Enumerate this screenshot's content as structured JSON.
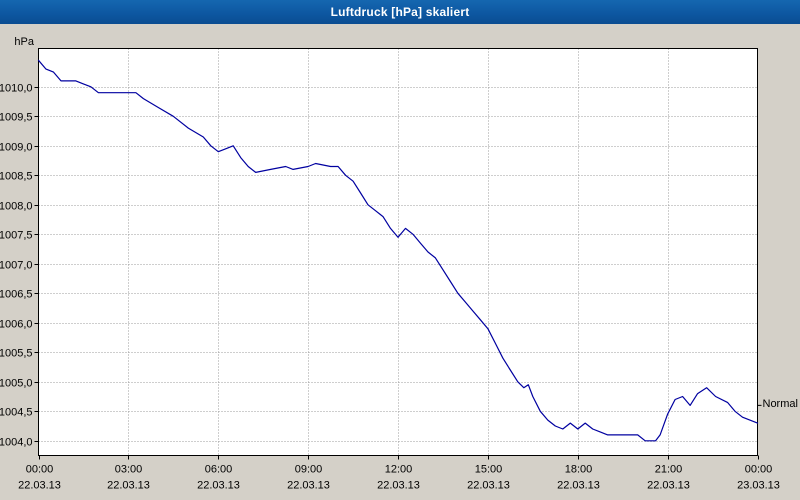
{
  "window": {
    "title": "Luftdruck [hPa] skaliert"
  },
  "chart_data": {
    "type": "line",
    "title": "Luftdruck [hPa] skaliert",
    "xlabel": "",
    "ylabel": "hPa",
    "ylim": [
      1003.75,
      1010.65
    ],
    "x_range_hours": [
      0,
      24
    ],
    "grid": "dotted",
    "legend_position": "none",
    "plot_bg": "#ffffff",
    "grid_color": "#9c9c9c",
    "line_color": "#0000a0",
    "y_ticks": [
      {
        "value": 1010.0,
        "label": "1010,0"
      },
      {
        "value": 1009.5,
        "label": "1009,5"
      },
      {
        "value": 1009.0,
        "label": "1009,0"
      },
      {
        "value": 1008.5,
        "label": "1008,5"
      },
      {
        "value": 1008.0,
        "label": "1008,0"
      },
      {
        "value": 1007.5,
        "label": "1007,5"
      },
      {
        "value": 1007.0,
        "label": "1007,0"
      },
      {
        "value": 1006.5,
        "label": "1006,5"
      },
      {
        "value": 1006.0,
        "label": "1006,0"
      },
      {
        "value": 1005.5,
        "label": "1005,5"
      },
      {
        "value": 1005.0,
        "label": "1005,0"
      },
      {
        "value": 1004.5,
        "label": "1004,5"
      },
      {
        "value": 1004.0,
        "label": "1004,0"
      }
    ],
    "x_ticks": [
      {
        "hour": 0,
        "time": "00:00",
        "date": "22.03.13"
      },
      {
        "hour": 3,
        "time": "03:00",
        "date": "22.03.13"
      },
      {
        "hour": 6,
        "time": "06:00",
        "date": "22.03.13"
      },
      {
        "hour": 9,
        "time": "09:00",
        "date": "22.03.13"
      },
      {
        "hour": 12,
        "time": "12:00",
        "date": "22.03.13"
      },
      {
        "hour": 15,
        "time": "15:00",
        "date": "22.03.13"
      },
      {
        "hour": 18,
        "time": "18:00",
        "date": "22.03.13"
      },
      {
        "hour": 21,
        "time": "21:00",
        "date": "22.03.13"
      },
      {
        "hour": 24,
        "time": "00:00",
        "date": "23.03.13"
      }
    ],
    "series": [
      {
        "name": "Luftdruck [hPa]",
        "points": [
          [
            0,
            1010.45
          ],
          [
            0.25,
            1010.3
          ],
          [
            0.5,
            1010.25
          ],
          [
            0.75,
            1010.1
          ],
          [
            1.25,
            1010.1
          ],
          [
            1.5,
            1010.05
          ],
          [
            1.75,
            1010.0
          ],
          [
            2,
            1009.9
          ],
          [
            3.25,
            1009.9
          ],
          [
            3.5,
            1009.8
          ],
          [
            4,
            1009.65
          ],
          [
            4.5,
            1009.5
          ],
          [
            5,
            1009.3
          ],
          [
            5.5,
            1009.15
          ],
          [
            5.75,
            1009.0
          ],
          [
            6,
            1008.9
          ],
          [
            6.25,
            1008.95
          ],
          [
            6.5,
            1009.0
          ],
          [
            6.75,
            1008.8
          ],
          [
            7,
            1008.65
          ],
          [
            7.25,
            1008.55
          ],
          [
            7.75,
            1008.6
          ],
          [
            8.25,
            1008.65
          ],
          [
            8.5,
            1008.6
          ],
          [
            9,
            1008.65
          ],
          [
            9.25,
            1008.7
          ],
          [
            9.75,
            1008.65
          ],
          [
            10,
            1008.65
          ],
          [
            10.25,
            1008.5
          ],
          [
            10.5,
            1008.4
          ],
          [
            10.75,
            1008.2
          ],
          [
            11,
            1008.0
          ],
          [
            11.25,
            1007.9
          ],
          [
            11.5,
            1007.8
          ],
          [
            11.75,
            1007.6
          ],
          [
            12,
            1007.45
          ],
          [
            12.25,
            1007.6
          ],
          [
            12.5,
            1007.5
          ],
          [
            12.75,
            1007.35
          ],
          [
            13,
            1007.2
          ],
          [
            13.25,
            1007.1
          ],
          [
            13.5,
            1006.9
          ],
          [
            13.75,
            1006.7
          ],
          [
            14,
            1006.5
          ],
          [
            14.25,
            1006.35
          ],
          [
            14.5,
            1006.2
          ],
          [
            14.75,
            1006.05
          ],
          [
            15,
            1005.9
          ],
          [
            15.25,
            1005.65
          ],
          [
            15.5,
            1005.4
          ],
          [
            15.75,
            1005.2
          ],
          [
            16,
            1005.0
          ],
          [
            16.2,
            1004.9
          ],
          [
            16.35,
            1004.95
          ],
          [
            16.5,
            1004.75
          ],
          [
            16.75,
            1004.5
          ],
          [
            17,
            1004.35
          ],
          [
            17.25,
            1004.25
          ],
          [
            17.5,
            1004.2
          ],
          [
            17.75,
            1004.3
          ],
          [
            18,
            1004.2
          ],
          [
            18.25,
            1004.3
          ],
          [
            18.5,
            1004.2
          ],
          [
            18.75,
            1004.15
          ],
          [
            19,
            1004.1
          ],
          [
            20,
            1004.1
          ],
          [
            20.25,
            1004.0
          ],
          [
            20.6,
            1004.0
          ],
          [
            20.75,
            1004.1
          ],
          [
            21,
            1004.45
          ],
          [
            21.25,
            1004.7
          ],
          [
            21.5,
            1004.75
          ],
          [
            21.75,
            1004.6
          ],
          [
            22,
            1004.8
          ],
          [
            22.3,
            1004.9
          ],
          [
            22.6,
            1004.75
          ],
          [
            23,
            1004.65
          ],
          [
            23.25,
            1004.5
          ],
          [
            23.5,
            1004.4
          ],
          [
            24,
            1004.3
          ]
        ]
      }
    ],
    "annotations": [
      {
        "label": "Normal",
        "value": 1004.6
      }
    ]
  }
}
